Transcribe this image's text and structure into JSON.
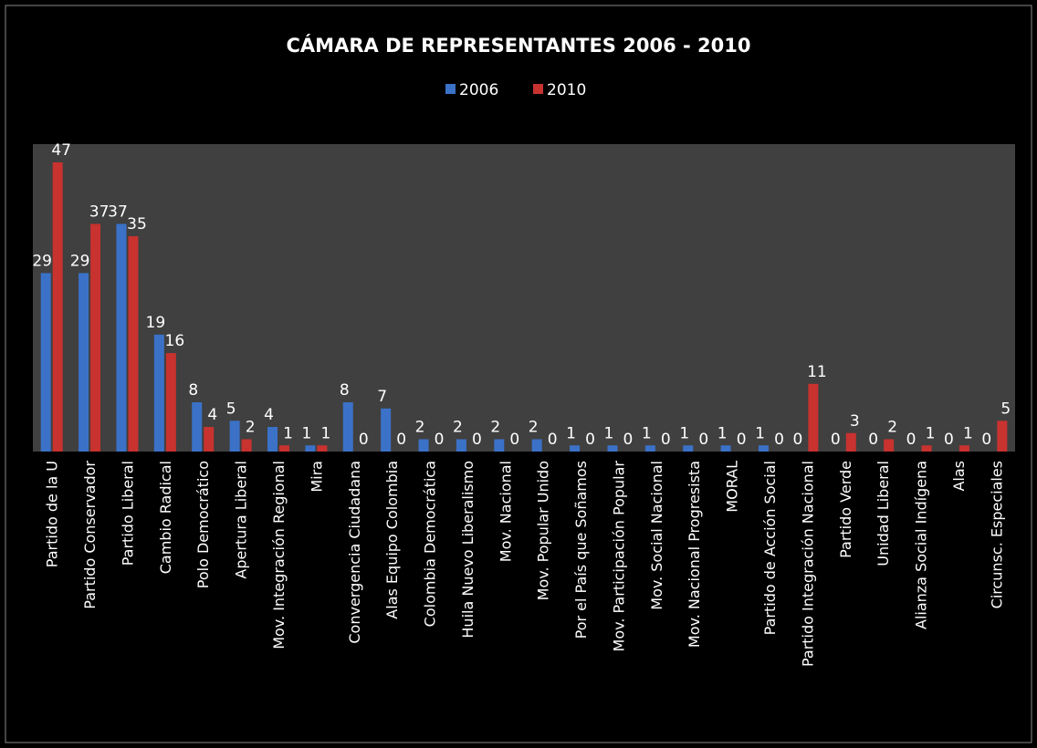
{
  "chart_data": {
    "type": "bar",
    "title": "CÁMARA DE REPRESENTANTES 2006 - 2010",
    "categories": [
      "Partido de la U",
      "Partido Conservador",
      "Partido Liberal",
      "Cambio Radical",
      "Polo Democrático",
      "Apertura Liberal",
      "Mov. Integración Regional",
      "Mira",
      "Convergencia Ciudadana",
      "Alas Equipo Colombia",
      "Colombia Democrática",
      "Huila Nuevo Liberalismo",
      "Mov. Nacional",
      "Mov. Popular Unido",
      "Por el País que Soñamos",
      "Mov. Participación Popular",
      "Mov. Social Nacional",
      "Mov. Nacional Progresista",
      "MORAL",
      "Partido de Acción Social",
      "Partido Integración Nacional",
      "Partido Verde",
      "Unidad Liberal",
      "Alianza Social Indígena",
      "Alas",
      "Circunsc. Especiales"
    ],
    "series": [
      {
        "name": "2006",
        "color": "#3b72c8",
        "values": [
          29,
          29,
          37,
          19,
          8,
          5,
          4,
          1,
          8,
          7,
          2,
          2,
          2,
          2,
          1,
          1,
          1,
          1,
          1,
          1,
          0,
          0,
          0,
          0,
          0,
          0
        ]
      },
      {
        "name": "2010",
        "color": "#c8322f",
        "values": [
          47,
          37,
          35,
          16,
          4,
          2,
          1,
          1,
          0,
          0,
          0,
          0,
          0,
          0,
          0,
          0,
          0,
          0,
          0,
          0,
          11,
          3,
          2,
          1,
          1,
          5
        ]
      }
    ]
  }
}
